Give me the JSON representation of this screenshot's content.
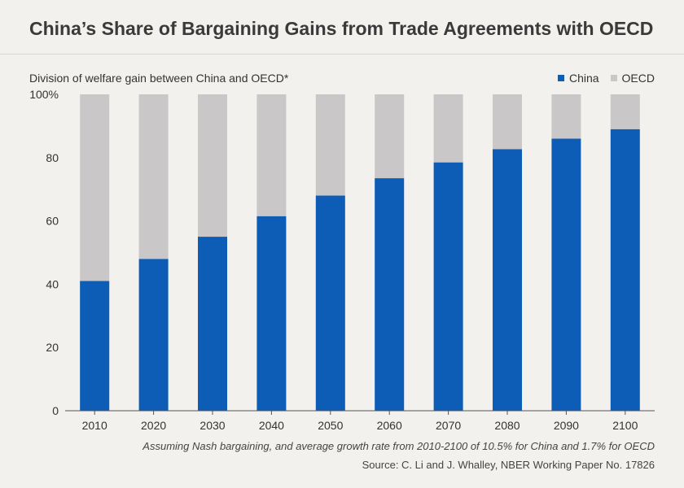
{
  "header": {
    "title": "China’s Share of Bargaining Gains from Trade Agreements with OECD"
  },
  "chart_data": {
    "type": "bar",
    "stacked": true,
    "title": "China’s Share of Bargaining Gains from Trade Agreements with OECD",
    "ylabel": "Division of welfare gain between China and OECD*",
    "xlabel": "",
    "categories": [
      "2010",
      "2020",
      "2030",
      "2040",
      "2050",
      "2060",
      "2070",
      "2080",
      "2090",
      "2100"
    ],
    "series": [
      {
        "name": "China",
        "color": "#0d5cb6",
        "values": [
          41,
          48,
          55,
          61.5,
          68,
          73.5,
          78.5,
          82.7,
          86,
          89
        ]
      },
      {
        "name": "OECD",
        "color": "#c9c7c7",
        "values": [
          59,
          52,
          45,
          38.5,
          32,
          26.5,
          21.5,
          17.3,
          14,
          11
        ]
      }
    ],
    "ylim": [
      0,
      100
    ],
    "yticks": [
      "0",
      "20",
      "40",
      "60",
      "80",
      "100%"
    ],
    "ytick_values": [
      0,
      20,
      40,
      60,
      80,
      100
    ],
    "legend_position": "top-right",
    "grid": false
  },
  "footer": {
    "note": "Assuming Nash bargaining, and average growth rate from 2010-2100 of 10.5% for China and 1.7% for OECD",
    "source": "Source: C. Li and J. Whalley, NBER Working Paper No. 17826"
  }
}
